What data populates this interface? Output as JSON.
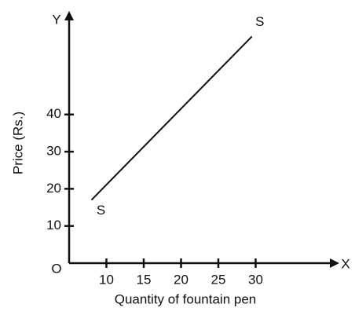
{
  "chart_data": {
    "type": "line",
    "xlabel": "Quantity of fountain pen",
    "ylabel": "Price (Rs.)",
    "x_axis_name": "X",
    "y_axis_name": "Y",
    "origin_label": "O",
    "x": [
      8,
      29.5
    ],
    "series": [
      {
        "color": "#111111",
        "values": [
          17,
          61
        ]
      }
    ],
    "point_labels": [
      "S",
      "S"
    ],
    "xlim": [
      5,
      41
    ],
    "xticks": [
      10,
      15,
      20,
      25,
      30
    ],
    "ylim": [
      0,
      67
    ],
    "yticks": [
      10,
      20,
      30,
      40
    ],
    "grid": false
  }
}
